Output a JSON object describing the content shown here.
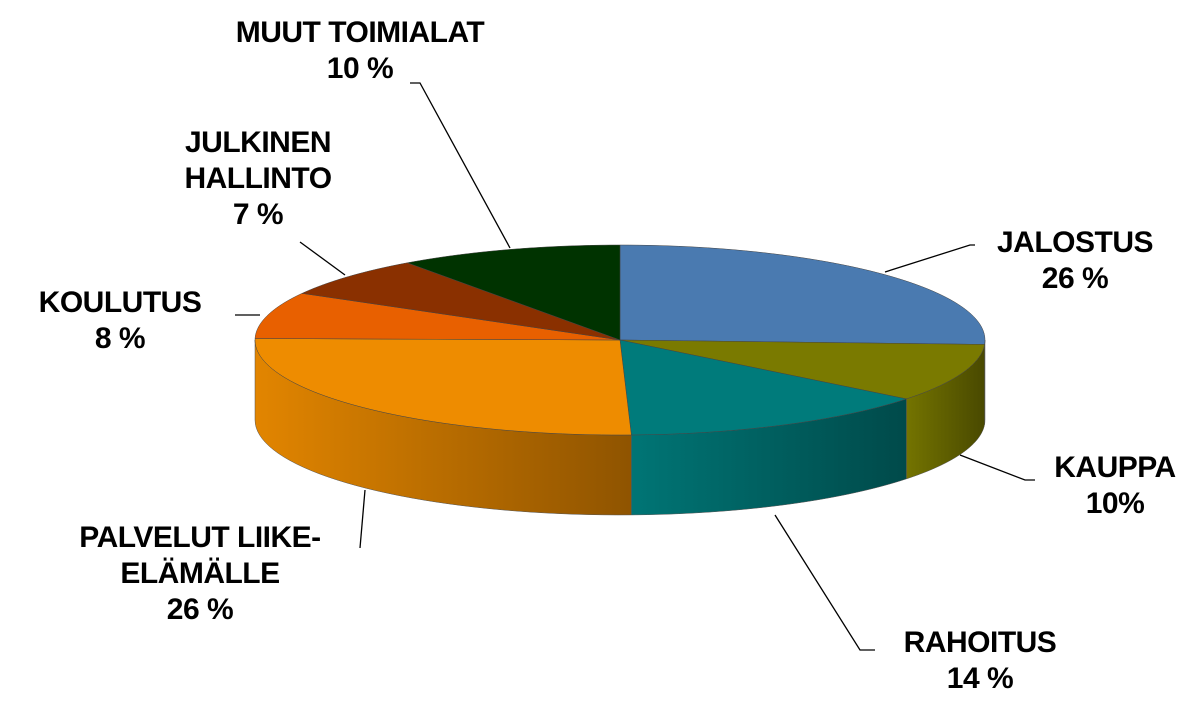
{
  "chart_data": {
    "type": "pie",
    "categories": [
      "JALOSTUS",
      "KAUPPA",
      "RAHOITUS",
      "PALVELUT LIIKE-ELÄMÄLLE",
      "KOULUTUS",
      "JULKINEN HALLINTO",
      "MUUT TOIMIALAT"
    ],
    "values": [
      26,
      10,
      14,
      26,
      8,
      7,
      10
    ],
    "value_labels": [
      "26 %",
      "10%",
      "14 %",
      "26 %",
      "8 %",
      "7 %",
      "10 %"
    ],
    "colors": [
      "#4a7ab0",
      "#7a7a00",
      "#007b7b",
      "#ee8c00",
      "#e86000",
      "#8a3000",
      "#003300"
    ]
  }
}
